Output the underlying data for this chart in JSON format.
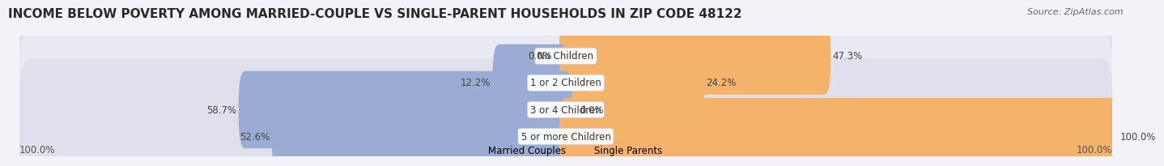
{
  "title": "INCOME BELOW POVERTY AMONG MARRIED-COUPLE VS SINGLE-PARENT HOUSEHOLDS IN ZIP CODE 48122",
  "source": "Source: ZipAtlas.com",
  "categories": [
    "No Children",
    "1 or 2 Children",
    "3 or 4 Children",
    "5 or more Children"
  ],
  "married_values": [
    0.0,
    12.2,
    58.7,
    52.6
  ],
  "single_values": [
    47.3,
    24.2,
    0.0,
    100.0
  ],
  "married_color": "#9bacd4",
  "single_color": "#f4b26a",
  "row_bg_color": "#e8e8f0",
  "fig_bg_color": "#f2f2f8",
  "title_fontsize": 11,
  "source_fontsize": 8,
  "label_fontsize": 8.5,
  "cat_fontsize": 8.5,
  "axis_label": "100.0%",
  "max_val": 100.0
}
